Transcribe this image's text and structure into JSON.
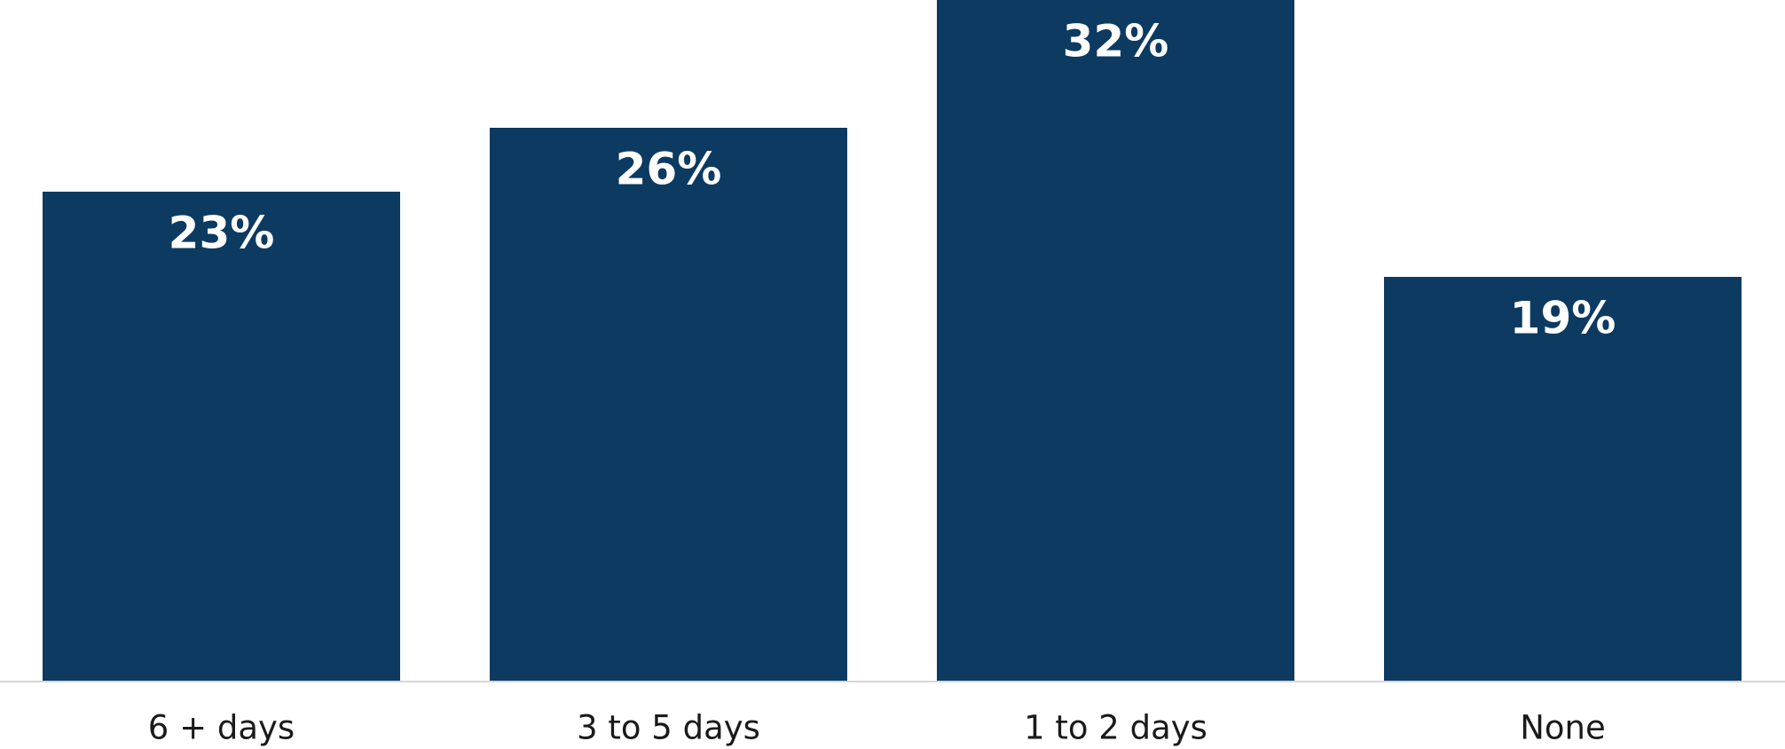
{
  "chart_data": {
    "type": "bar",
    "categories": [
      "6 + days",
      "3 to 5 days",
      "1 to 2 days",
      "None"
    ],
    "values": [
      23,
      26,
      32,
      19
    ],
    "value_labels": [
      "23%",
      "26%",
      "32%",
      "19%"
    ],
    "title": "",
    "xlabel": "",
    "ylabel": "",
    "ylim": [
      0,
      32
    ],
    "grid": false,
    "legend": "none",
    "colors": {
      "bar": "#0c3a61",
      "value_label": "#ffffff",
      "category_label": "#1a1a1a",
      "baseline": "#d6d6d6",
      "background": "#ffffff"
    }
  }
}
